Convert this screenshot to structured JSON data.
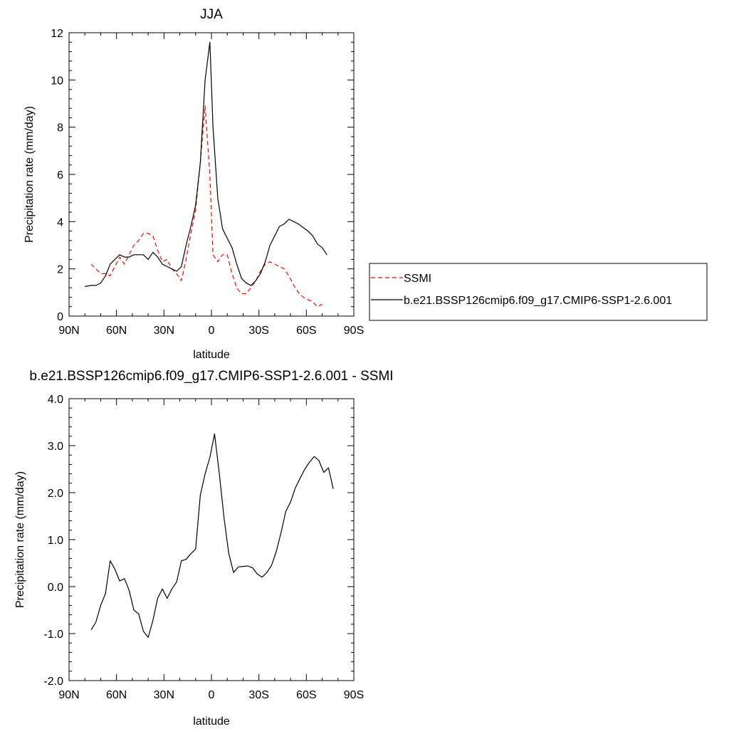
{
  "chart_data": [
    {
      "type": "line",
      "title": "JJA",
      "xlabel": "latitude",
      "ylabel": "Precipitation rate (mm/day)",
      "xlim": [
        90,
        -90
      ],
      "ylim": [
        0,
        12
      ],
      "xticks": [
        90,
        60,
        30,
        0,
        -30,
        -60,
        -90
      ],
      "xticklabels": [
        "90N",
        "60N",
        "30N",
        "0",
        "30S",
        "60S",
        "90S"
      ],
      "yticks": [
        0,
        2,
        4,
        6,
        8,
        10,
        12
      ],
      "yticklabels": [
        "0",
        "2",
        "4",
        "6",
        "8",
        "10",
        "12"
      ],
      "legend_position": "right",
      "series": [
        {
          "name": "SSMI",
          "style": "dashed",
          "color": "#ff0000",
          "points": [
            [
              76,
              2.2
            ],
            [
              73,
              2.0
            ],
            [
              70,
              1.8
            ],
            [
              67,
              1.8
            ],
            [
              64,
              1.7
            ],
            [
              61,
              2.1
            ],
            [
              58,
              2.5
            ],
            [
              55,
              2.2
            ],
            [
              52,
              2.6
            ],
            [
              49,
              3.0
            ],
            [
              46,
              3.2
            ],
            [
              43,
              3.5
            ],
            [
              40,
              3.5
            ],
            [
              37,
              3.4
            ],
            [
              34,
              2.8
            ],
            [
              31,
              2.3
            ],
            [
              28,
              2.4
            ],
            [
              25,
              2.0
            ],
            [
              22,
              1.8
            ],
            [
              19,
              1.5
            ],
            [
              16,
              2.4
            ],
            [
              13,
              3.5
            ],
            [
              10,
              4.5
            ],
            [
              7,
              6.5
            ],
            [
              4,
              8.9
            ],
            [
              1,
              6.0
            ],
            [
              -1,
              2.6
            ],
            [
              -4,
              2.3
            ],
            [
              -7,
              2.6
            ],
            [
              -10,
              2.6
            ],
            [
              -13,
              1.8
            ],
            [
              -16,
              1.2
            ],
            [
              -19,
              0.95
            ],
            [
              -22,
              0.95
            ],
            [
              -25,
              1.2
            ],
            [
              -28,
              1.5
            ],
            [
              -31,
              1.9
            ],
            [
              -34,
              2.2
            ],
            [
              -37,
              2.3
            ],
            [
              -40,
              2.2
            ],
            [
              -43,
              2.1
            ],
            [
              -46,
              2.0
            ],
            [
              -49,
              1.7
            ],
            [
              -52,
              1.3
            ],
            [
              -55,
              1.0
            ],
            [
              -58,
              0.8
            ],
            [
              -61,
              0.7
            ],
            [
              -64,
              0.6
            ],
            [
              -67,
              0.4
            ],
            [
              -70,
              0.5
            ]
          ]
        },
        {
          "name": "b.e21.BSSP126cmip6.f09_g17.CMIP6-SSP1-2.6.001",
          "style": "solid",
          "color": "#000000",
          "points": [
            [
              80,
              1.25
            ],
            [
              76,
              1.3
            ],
            [
              73,
              1.3
            ],
            [
              70,
              1.4
            ],
            [
              67,
              1.7
            ],
            [
              64,
              2.2
            ],
            [
              61,
              2.4
            ],
            [
              58,
              2.6
            ],
            [
              55,
              2.5
            ],
            [
              52,
              2.5
            ],
            [
              49,
              2.6
            ],
            [
              46,
              2.6
            ],
            [
              43,
              2.6
            ],
            [
              40,
              2.4
            ],
            [
              37,
              2.7
            ],
            [
              34,
              2.5
            ],
            [
              31,
              2.2
            ],
            [
              28,
              2.1
            ],
            [
              25,
              2.0
            ],
            [
              22,
              1.9
            ],
            [
              19,
              2.1
            ],
            [
              16,
              3.0
            ],
            [
              13,
              3.8
            ],
            [
              10,
              4.7
            ],
            [
              7,
              6.5
            ],
            [
              4,
              10.0
            ],
            [
              1,
              11.6
            ],
            [
              -1,
              8.0
            ],
            [
              -4,
              5.0
            ],
            [
              -7,
              3.7
            ],
            [
              -10,
              3.3
            ],
            [
              -13,
              2.9
            ],
            [
              -16,
              2.2
            ],
            [
              -19,
              1.6
            ],
            [
              -22,
              1.4
            ],
            [
              -25,
              1.3
            ],
            [
              -28,
              1.5
            ],
            [
              -31,
              1.8
            ],
            [
              -34,
              2.3
            ],
            [
              -37,
              3.0
            ],
            [
              -40,
              3.4
            ],
            [
              -43,
              3.8
            ],
            [
              -46,
              3.9
            ],
            [
              -49,
              4.1
            ],
            [
              -52,
              4.0
            ],
            [
              -55,
              3.9
            ],
            [
              -58,
              3.75
            ],
            [
              -61,
              3.6
            ],
            [
              -64,
              3.4
            ],
            [
              -67,
              3.05
            ],
            [
              -70,
              2.9
            ],
            [
              -73,
              2.6
            ]
          ]
        }
      ]
    },
    {
      "type": "line",
      "title": "b.e21.BSSP126cmip6.f09_g17.CMIP6-SSP1-2.6.001 - SSMI",
      "xlabel": "latitude",
      "ylabel": "Precipitation rate (mm/day)",
      "xlim": [
        90,
        -90
      ],
      "ylim": [
        -2,
        4
      ],
      "xticks": [
        90,
        60,
        30,
        0,
        -30,
        -60,
        -90
      ],
      "xticklabels": [
        "90N",
        "60N",
        "30N",
        "0",
        "30S",
        "60S",
        "90S"
      ],
      "yticks": [
        -2,
        -1,
        0,
        1,
        2,
        3,
        4
      ],
      "yticklabels": [
        "-2.0",
        "-1.0",
        "0.0",
        "1.0",
        "2.0",
        "3.0",
        "4.0"
      ],
      "series": [
        {
          "style": "solid",
          "color": "#000000",
          "points": [
            [
              76,
              -0.92
            ],
            [
              73,
              -0.75
            ],
            [
              70,
              -0.4
            ],
            [
              67,
              -0.15
            ],
            [
              64,
              0.55
            ],
            [
              61,
              0.37
            ],
            [
              58,
              0.12
            ],
            [
              55,
              0.17
            ],
            [
              52,
              -0.08
            ],
            [
              49,
              -0.5
            ],
            [
              46,
              -0.58
            ],
            [
              43,
              -0.95
            ],
            [
              40,
              -1.08
            ],
            [
              37,
              -0.72
            ],
            [
              34,
              -0.25
            ],
            [
              31,
              -0.05
            ],
            [
              28,
              -0.25
            ],
            [
              25,
              -0.05
            ],
            [
              22,
              0.1
            ],
            [
              19,
              0.55
            ],
            [
              16,
              0.58
            ],
            [
              13,
              0.7
            ],
            [
              10,
              0.8
            ],
            [
              7,
              1.95
            ],
            [
              4,
              2.4
            ],
            [
              1,
              2.75
            ],
            [
              -2,
              3.25
            ],
            [
              -5,
              2.4
            ],
            [
              -8,
              1.45
            ],
            [
              -11,
              0.7
            ],
            [
              -14,
              0.3
            ],
            [
              -17,
              0.42
            ],
            [
              -20,
              0.43
            ],
            [
              -23,
              0.44
            ],
            [
              -26,
              0.4
            ],
            [
              -29,
              0.27
            ],
            [
              -32,
              0.2
            ],
            [
              -35,
              0.3
            ],
            [
              -38,
              0.45
            ],
            [
              -41,
              0.75
            ],
            [
              -44,
              1.15
            ],
            [
              -47,
              1.6
            ],
            [
              -50,
              1.8
            ],
            [
              -53,
              2.1
            ],
            [
              -56,
              2.3
            ],
            [
              -59,
              2.5
            ],
            [
              -62,
              2.65
            ],
            [
              -65,
              2.77
            ],
            [
              -68,
              2.68
            ],
            [
              -71,
              2.43
            ],
            [
              -74,
              2.53
            ],
            [
              -77,
              2.08
            ]
          ]
        }
      ]
    }
  ]
}
